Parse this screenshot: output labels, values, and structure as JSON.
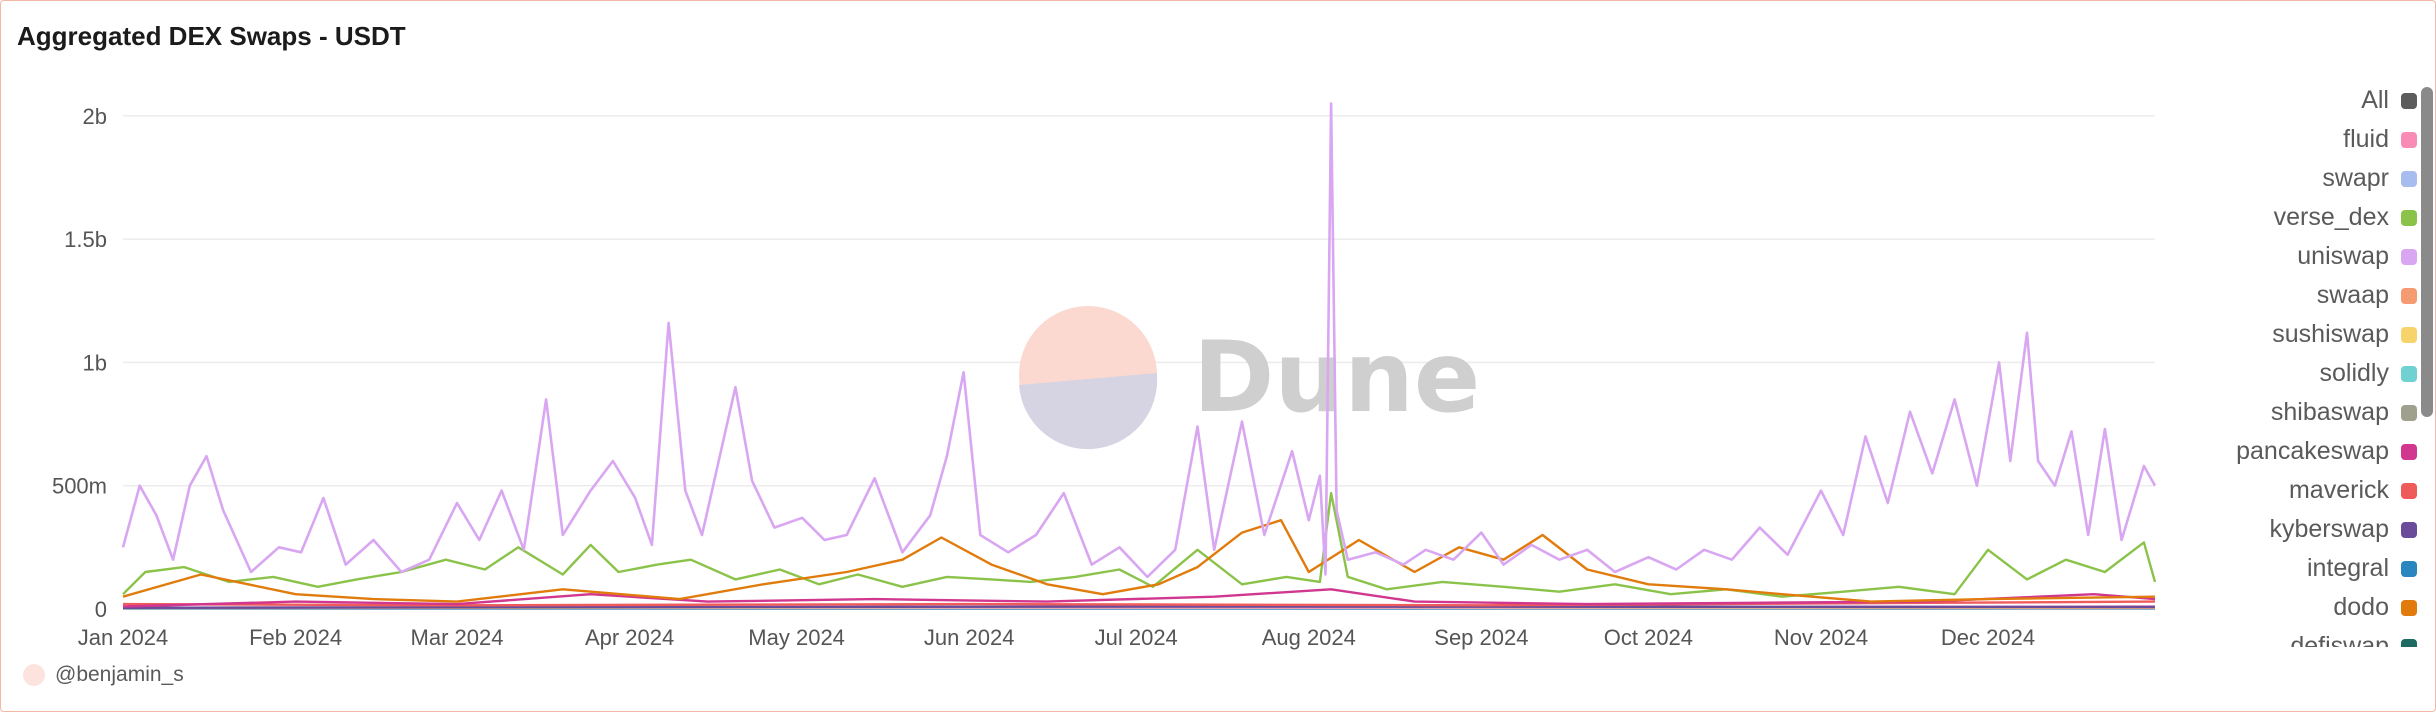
{
  "chart_data": {
    "type": "line",
    "title": "Aggregated DEX Swaps - USDT",
    "x_range": [
      "2024-01-01",
      "2024-12-31"
    ],
    "x_ticks": [
      "Jan 2024",
      "Feb 2024",
      "Mar 2024",
      "Apr 2024",
      "May 2024",
      "Jun 2024",
      "Jul 2024",
      "Aug 2024",
      "Sep 2024",
      "Oct 2024",
      "Nov 2024",
      "Dec 2024"
    ],
    "y_ticks": [
      {
        "value": 0,
        "label": "0"
      },
      {
        "value": 500000000,
        "label": "500m"
      },
      {
        "value": 1000000000,
        "label": "1b"
      },
      {
        "value": 1500000000,
        "label": "1.5b"
      },
      {
        "value": 2000000000,
        "label": "2b"
      }
    ],
    "ylim": [
      0,
      2060000000
    ],
    "grid": true,
    "legend_position": "right",
    "series": [
      {
        "name": "All",
        "color": "#5c5c5c",
        "points": []
      },
      {
        "name": "fluid",
        "color": "#f98cb6",
        "points": [
          [
            "2024-01-01",
            5000000
          ],
          [
            "2024-04-01",
            8000000
          ],
          [
            "2024-08-01",
            6000000
          ],
          [
            "2024-12-31",
            10000000
          ]
        ]
      },
      {
        "name": "swapr",
        "color": "#a7bdf0",
        "points": [
          [
            "2024-01-01",
            3000000
          ],
          [
            "2024-06-01",
            4000000
          ],
          [
            "2024-12-31",
            3000000
          ]
        ]
      },
      {
        "name": "verse_dex",
        "color": "#8bc34a",
        "points": [
          [
            "2024-01-01",
            60000000
          ],
          [
            "2024-01-05",
            150000000
          ],
          [
            "2024-01-12",
            170000000
          ],
          [
            "2024-01-20",
            110000000
          ],
          [
            "2024-01-28",
            130000000
          ],
          [
            "2024-02-05",
            90000000
          ],
          [
            "2024-02-12",
            120000000
          ],
          [
            "2024-02-20",
            150000000
          ],
          [
            "2024-02-28",
            200000000
          ],
          [
            "2024-03-06",
            160000000
          ],
          [
            "2024-03-12",
            250000000
          ],
          [
            "2024-03-20",
            140000000
          ],
          [
            "2024-03-25",
            260000000
          ],
          [
            "2024-03-30",
            150000000
          ],
          [
            "2024-04-06",
            180000000
          ],
          [
            "2024-04-12",
            200000000
          ],
          [
            "2024-04-20",
            120000000
          ],
          [
            "2024-04-28",
            160000000
          ],
          [
            "2024-05-05",
            100000000
          ],
          [
            "2024-05-12",
            140000000
          ],
          [
            "2024-05-20",
            90000000
          ],
          [
            "2024-05-28",
            130000000
          ],
          [
            "2024-06-05",
            120000000
          ],
          [
            "2024-06-12",
            110000000
          ],
          [
            "2024-06-20",
            130000000
          ],
          [
            "2024-06-28",
            160000000
          ],
          [
            "2024-07-04",
            90000000
          ],
          [
            "2024-07-12",
            240000000
          ],
          [
            "2024-07-20",
            100000000
          ],
          [
            "2024-07-28",
            130000000
          ],
          [
            "2024-08-03",
            110000000
          ],
          [
            "2024-08-05",
            470000000
          ],
          [
            "2024-08-08",
            130000000
          ],
          [
            "2024-08-15",
            80000000
          ],
          [
            "2024-08-25",
            110000000
          ],
          [
            "2024-09-05",
            90000000
          ],
          [
            "2024-09-15",
            70000000
          ],
          [
            "2024-09-25",
            100000000
          ],
          [
            "2024-10-05",
            60000000
          ],
          [
            "2024-10-15",
            80000000
          ],
          [
            "2024-10-25",
            50000000
          ],
          [
            "2024-11-05",
            70000000
          ],
          [
            "2024-11-15",
            90000000
          ],
          [
            "2024-11-25",
            60000000
          ],
          [
            "2024-12-01",
            240000000
          ],
          [
            "2024-12-08",
            120000000
          ],
          [
            "2024-12-15",
            200000000
          ],
          [
            "2024-12-22",
            150000000
          ],
          [
            "2024-12-29",
            270000000
          ],
          [
            "2024-12-31",
            110000000
          ]
        ]
      },
      {
        "name": "uniswap",
        "color": "#d9a6f2",
        "points": [
          [
            "2024-01-01",
            250000000
          ],
          [
            "2024-01-04",
            500000000
          ],
          [
            "2024-01-07",
            380000000
          ],
          [
            "2024-01-10",
            200000000
          ],
          [
            "2024-01-13",
            500000000
          ],
          [
            "2024-01-16",
            620000000
          ],
          [
            "2024-01-19",
            400000000
          ],
          [
            "2024-01-24",
            150000000
          ],
          [
            "2024-01-29",
            250000000
          ],
          [
            "2024-02-02",
            230000000
          ],
          [
            "2024-02-06",
            450000000
          ],
          [
            "2024-02-10",
            180000000
          ],
          [
            "2024-02-15",
            280000000
          ],
          [
            "2024-02-20",
            150000000
          ],
          [
            "2024-02-25",
            200000000
          ],
          [
            "2024-03-01",
            430000000
          ],
          [
            "2024-03-05",
            280000000
          ],
          [
            "2024-03-09",
            480000000
          ],
          [
            "2024-03-13",
            240000000
          ],
          [
            "2024-03-17",
            850000000
          ],
          [
            "2024-03-20",
            300000000
          ],
          [
            "2024-03-25",
            480000000
          ],
          [
            "2024-03-29",
            600000000
          ],
          [
            "2024-04-02",
            450000000
          ],
          [
            "2024-04-05",
            260000000
          ],
          [
            "2024-04-08",
            1160000000
          ],
          [
            "2024-04-11",
            480000000
          ],
          [
            "2024-04-14",
            300000000
          ],
          [
            "2024-04-17",
            600000000
          ],
          [
            "2024-04-20",
            900000000
          ],
          [
            "2024-04-23",
            520000000
          ],
          [
            "2024-04-27",
            330000000
          ],
          [
            "2024-05-02",
            370000000
          ],
          [
            "2024-05-06",
            280000000
          ],
          [
            "2024-05-10",
            300000000
          ],
          [
            "2024-05-15",
            530000000
          ],
          [
            "2024-05-20",
            230000000
          ],
          [
            "2024-05-25",
            380000000
          ],
          [
            "2024-05-28",
            620000000
          ],
          [
            "2024-05-31",
            960000000
          ],
          [
            "2024-06-03",
            300000000
          ],
          [
            "2024-06-08",
            230000000
          ],
          [
            "2024-06-13",
            300000000
          ],
          [
            "2024-06-18",
            470000000
          ],
          [
            "2024-06-23",
            180000000
          ],
          [
            "2024-06-28",
            250000000
          ],
          [
            "2024-07-03",
            130000000
          ],
          [
            "2024-07-08",
            240000000
          ],
          [
            "2024-07-12",
            740000000
          ],
          [
            "2024-07-15",
            240000000
          ],
          [
            "2024-07-20",
            760000000
          ],
          [
            "2024-07-24",
            300000000
          ],
          [
            "2024-07-29",
            640000000
          ],
          [
            "2024-08-01",
            360000000
          ],
          [
            "2024-08-03",
            540000000
          ],
          [
            "2024-08-04",
            140000000
          ],
          [
            "2024-08-05",
            2050000000
          ],
          [
            "2024-08-06",
            400000000
          ],
          [
            "2024-08-08",
            200000000
          ],
          [
            "2024-08-13",
            230000000
          ],
          [
            "2024-08-18",
            180000000
          ],
          [
            "2024-08-22",
            240000000
          ],
          [
            "2024-08-27",
            200000000
          ],
          [
            "2024-09-01",
            310000000
          ],
          [
            "2024-09-05",
            180000000
          ],
          [
            "2024-09-10",
            260000000
          ],
          [
            "2024-09-15",
            200000000
          ],
          [
            "2024-09-20",
            240000000
          ],
          [
            "2024-09-25",
            150000000
          ],
          [
            "2024-10-01",
            210000000
          ],
          [
            "2024-10-06",
            160000000
          ],
          [
            "2024-10-11",
            240000000
          ],
          [
            "2024-10-16",
            200000000
          ],
          [
            "2024-10-21",
            330000000
          ],
          [
            "2024-10-26",
            220000000
          ],
          [
            "2024-11-01",
            480000000
          ],
          [
            "2024-11-05",
            300000000
          ],
          [
            "2024-11-09",
            700000000
          ],
          [
            "2024-11-13",
            430000000
          ],
          [
            "2024-11-17",
            800000000
          ],
          [
            "2024-11-21",
            550000000
          ],
          [
            "2024-11-25",
            850000000
          ],
          [
            "2024-11-29",
            500000000
          ],
          [
            "2024-12-03",
            1000000000
          ],
          [
            "2024-12-05",
            600000000
          ],
          [
            "2024-12-08",
            1120000000
          ],
          [
            "2024-12-10",
            600000000
          ],
          [
            "2024-12-13",
            500000000
          ],
          [
            "2024-12-16",
            720000000
          ],
          [
            "2024-12-19",
            300000000
          ],
          [
            "2024-12-22",
            730000000
          ],
          [
            "2024-12-25",
            280000000
          ],
          [
            "2024-12-29",
            580000000
          ],
          [
            "2024-12-31",
            500000000
          ]
        ]
      },
      {
        "name": "swaap",
        "color": "#f69a71",
        "points": [
          [
            "2024-01-01",
            5000000
          ],
          [
            "2024-06-01",
            8000000
          ],
          [
            "2024-12-31",
            6000000
          ]
        ]
      },
      {
        "name": "sushiswap",
        "color": "#f6d36b",
        "points": [
          [
            "2024-01-01",
            4000000
          ],
          [
            "2024-06-01",
            6000000
          ],
          [
            "2024-12-31",
            5000000
          ]
        ]
      },
      {
        "name": "solidly",
        "color": "#6fd1d1",
        "points": [
          [
            "2024-01-01",
            2000000
          ],
          [
            "2024-12-31",
            2000000
          ]
        ]
      },
      {
        "name": "shibaswap",
        "color": "#a0a08e",
        "points": [
          [
            "2024-01-01",
            2000000
          ],
          [
            "2024-12-31",
            2000000
          ]
        ]
      },
      {
        "name": "pancakeswap",
        "color": "#d1378f",
        "points": [
          [
            "2024-01-01",
            10000000
          ],
          [
            "2024-02-01",
            30000000
          ],
          [
            "2024-03-01",
            20000000
          ],
          [
            "2024-03-25",
            60000000
          ],
          [
            "2024-04-15",
            30000000
          ],
          [
            "2024-05-15",
            40000000
          ],
          [
            "2024-06-15",
            30000000
          ],
          [
            "2024-07-15",
            50000000
          ],
          [
            "2024-08-05",
            80000000
          ],
          [
            "2024-08-20",
            30000000
          ],
          [
            "2024-09-20",
            20000000
          ],
          [
            "2024-10-20",
            25000000
          ],
          [
            "2024-11-20",
            30000000
          ],
          [
            "2024-12-20",
            60000000
          ],
          [
            "2024-12-31",
            40000000
          ]
        ]
      },
      {
        "name": "maverick",
        "color": "#ef5b5b",
        "points": [
          [
            "2024-01-01",
            20000000
          ],
          [
            "2024-03-01",
            15000000
          ],
          [
            "2024-06-01",
            20000000
          ],
          [
            "2024-09-01",
            15000000
          ],
          [
            "2024-12-31",
            30000000
          ]
        ]
      },
      {
        "name": "kyberswap",
        "color": "#6b4c9a",
        "points": [
          [
            "2024-01-01",
            5000000
          ],
          [
            "2024-07-01",
            10000000
          ],
          [
            "2024-12-31",
            8000000
          ]
        ]
      },
      {
        "name": "integral",
        "color": "#2a86bf",
        "points": [
          [
            "2024-01-01",
            2000000
          ],
          [
            "2024-12-31",
            2000000
          ]
        ]
      },
      {
        "name": "dodo",
        "color": "#e07b0c",
        "points": [
          [
            "2024-01-01",
            50000000
          ],
          [
            "2024-01-15",
            140000000
          ],
          [
            "2024-02-01",
            60000000
          ],
          [
            "2024-02-15",
            40000000
          ],
          [
            "2024-03-01",
            30000000
          ],
          [
            "2024-03-20",
            80000000
          ],
          [
            "2024-04-10",
            40000000
          ],
          [
            "2024-04-25",
            100000000
          ],
          [
            "2024-05-10",
            150000000
          ],
          [
            "2024-05-20",
            200000000
          ],
          [
            "2024-05-27",
            290000000
          ],
          [
            "2024-06-05",
            180000000
          ],
          [
            "2024-06-15",
            100000000
          ],
          [
            "2024-06-25",
            60000000
          ],
          [
            "2024-07-05",
            100000000
          ],
          [
            "2024-07-12",
            170000000
          ],
          [
            "2024-07-20",
            310000000
          ],
          [
            "2024-07-27",
            360000000
          ],
          [
            "2024-08-01",
            150000000
          ],
          [
            "2024-08-10",
            280000000
          ],
          [
            "2024-08-20",
            150000000
          ],
          [
            "2024-08-28",
            250000000
          ],
          [
            "2024-09-05",
            200000000
          ],
          [
            "2024-09-12",
            300000000
          ],
          [
            "2024-09-20",
            160000000
          ],
          [
            "2024-10-01",
            100000000
          ],
          [
            "2024-10-15",
            80000000
          ],
          [
            "2024-10-25",
            60000000
          ],
          [
            "2024-11-10",
            30000000
          ],
          [
            "2024-12-01",
            40000000
          ],
          [
            "2024-12-31",
            50000000
          ]
        ]
      },
      {
        "name": "defiswap",
        "color": "#1e6b63",
        "points": []
      }
    ]
  },
  "watermark": {
    "text": "Dune"
  },
  "credit": {
    "handle": "@benjamin_s"
  }
}
